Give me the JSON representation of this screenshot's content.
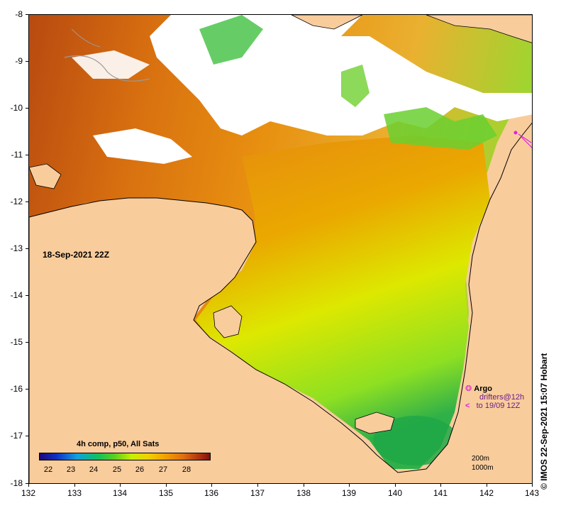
{
  "map": {
    "date_label": "18-Sep-2021 22Z",
    "y_ticks": [
      "-8",
      "-9",
      "-10",
      "-11",
      "-12",
      "-13",
      "-14",
      "-15",
      "-16",
      "-17",
      "-18"
    ],
    "x_ticks": [
      "132",
      "133",
      "134",
      "135",
      "136",
      "137",
      "138",
      "139",
      "140",
      "141",
      "142",
      "143"
    ],
    "lon_range": [
      132,
      143
    ],
    "lat_range": [
      -18,
      -8
    ],
    "land_color": "#f9cc9c",
    "nodata_color": "#ffffff"
  },
  "colorbar": {
    "title": "4h comp, p50, All Sats",
    "labels": [
      "22",
      "23",
      "24",
      "25",
      "26",
      "27",
      "28"
    ],
    "range": [
      21.5,
      29
    ]
  },
  "argo_legend": {
    "title": "Argo",
    "line1": "drifters@12h",
    "line2": "to 19/09 12Z",
    "marker_color": "#e020e0"
  },
  "depth_legend": {
    "contour1": "200m",
    "contour2": "1000m"
  },
  "credit": "© IMOS 22-Sep-2021 15:07 Hobart"
}
